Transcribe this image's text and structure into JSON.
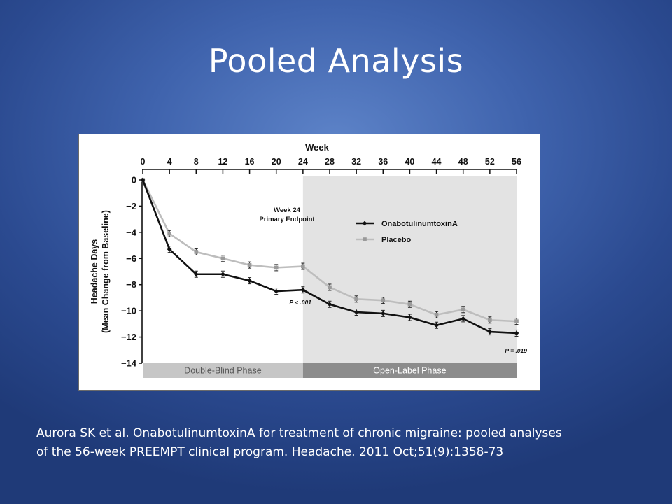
{
  "slide": {
    "title": "Pooled Analysis",
    "citation_lines": [
      "Aurora SK et al. OnabotulinumtoxinA for treatment of chronic migraine: pooled analyses",
      "of the 56-week PREEMPT clinical program. Headache. 2011 Oct;51(9):1358-73"
    ]
  },
  "chart_data": {
    "type": "line",
    "xlabel": "Week",
    "ylabel_lines": [
      "Headache Days",
      "(Mean Change from Baseline)"
    ],
    "x": [
      0,
      4,
      8,
      12,
      16,
      20,
      24,
      28,
      32,
      36,
      40,
      44,
      48,
      52,
      56
    ],
    "x_ticks": [
      "0",
      "4",
      "8",
      "12",
      "16",
      "20",
      "24",
      "28",
      "32",
      "36",
      "40",
      "44",
      "48",
      "52",
      "56"
    ],
    "x_axis_position": "top",
    "xlim": [
      0,
      56
    ],
    "y_ticks": [
      "0",
      "−2",
      "−4",
      "−6",
      "−8",
      "−10",
      "−12",
      "−14"
    ],
    "ylim": [
      -14,
      0
    ],
    "grid": false,
    "legend_position": "right",
    "series": [
      {
        "name": "OnabotulinumtoxinA",
        "color": "#111111",
        "marker": "diamond",
        "x": [
          0,
          4,
          8,
          12,
          16,
          20,
          24,
          28,
          32,
          36,
          40,
          44,
          48,
          52,
          56
        ],
        "values": [
          0,
          -5.3,
          -7.2,
          -7.2,
          -7.7,
          -8.5,
          -8.4,
          -9.5,
          -10.1,
          -10.2,
          -10.5,
          -11.1,
          -10.6,
          -11.6,
          -11.7
        ]
      },
      {
        "name": "Placebo",
        "color": "#bdbdbd",
        "marker": "square",
        "x": [
          0,
          4,
          8,
          12,
          16,
          20,
          24,
          28,
          32,
          36,
          40,
          44,
          48,
          52,
          56
        ],
        "values": [
          0,
          -4.1,
          -5.5,
          -6.0,
          -6.5,
          -6.7,
          -6.6,
          -8.2,
          -9.1,
          -9.2,
          -9.5,
          -10.3,
          -9.9,
          -10.7,
          -10.8
        ]
      }
    ],
    "phases": [
      {
        "label": "Double-Blind Phase",
        "from": 0,
        "to": 24,
        "color": "#c6c6c6",
        "text_color": "#555555"
      },
      {
        "label": "Open-Label Phase",
        "from": 24,
        "to": 56,
        "color": "#8c8c8c",
        "text_color": "#ffffff"
      }
    ],
    "shaded_region": {
      "from": 24,
      "to": 56,
      "color": "#e3e3e3"
    },
    "annotations": {
      "endpoint": [
        "Week 24",
        "Primary Endpoint"
      ],
      "p_value_week24": "P < .001",
      "p_value_week56": "P = .019"
    }
  }
}
